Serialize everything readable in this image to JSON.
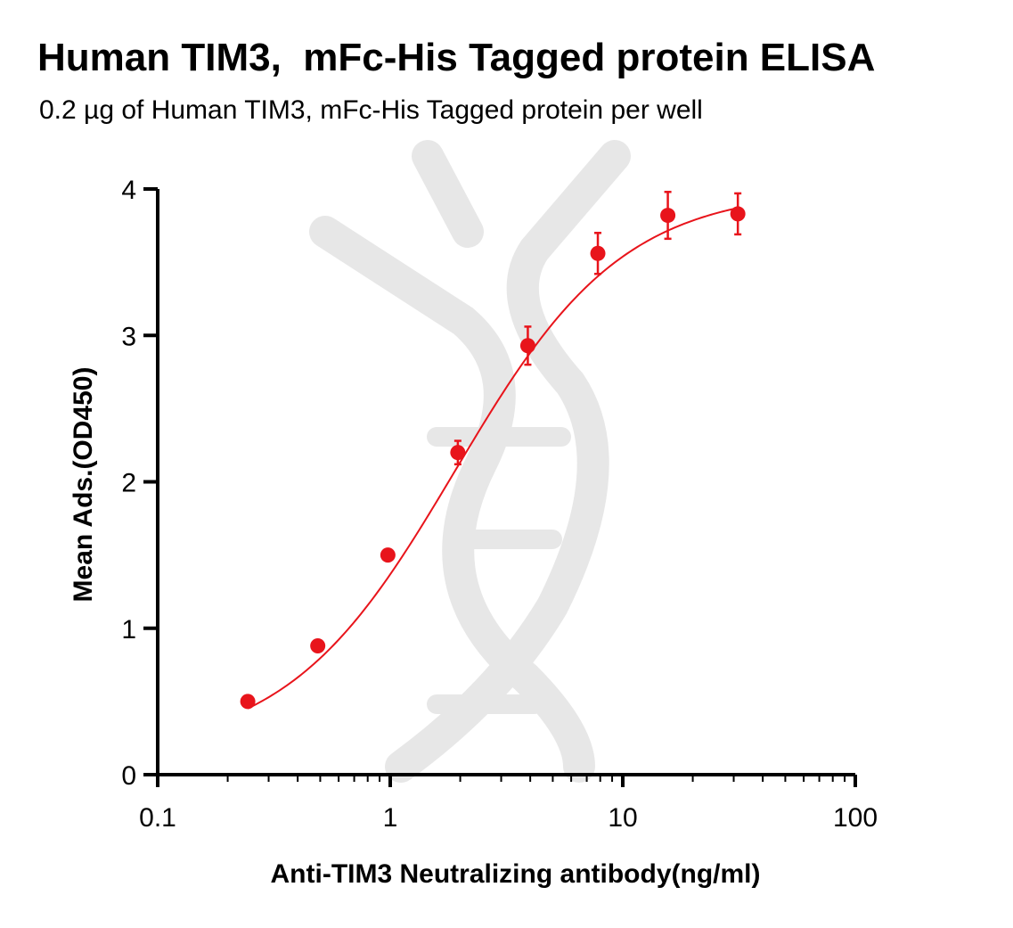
{
  "chart_data": {
    "type": "scatter",
    "title": "Human TIM3,  mFc-His Tagged protein ELISA",
    "subtitle": "0.2 µg of Human TIM3, mFc-His Tagged protein per well",
    "xlabel": "Anti-TIM3 Neutralizing antibody(ng/ml)",
    "ylabel": "Mean Ads.(OD450)",
    "x_scale": "log",
    "xlim": [
      0.1,
      100
    ],
    "ylim": [
      0,
      4
    ],
    "x_ticks": [
      0.1,
      1,
      10,
      100
    ],
    "x_tick_labels": [
      "0.1",
      "1",
      "10",
      "100"
    ],
    "y_ticks": [
      0,
      1,
      2,
      3,
      4
    ],
    "y_tick_labels": [
      "0",
      "1",
      "2",
      "3",
      "4"
    ],
    "grid": false,
    "color": "#e8141b",
    "series": [
      {
        "x": [
          0.244,
          0.488,
          0.977,
          1.953,
          3.906,
          7.813,
          15.625,
          31.25
        ],
        "y": [
          0.5,
          0.88,
          1.5,
          2.2,
          2.93,
          3.56,
          3.82,
          3.83
        ],
        "error": [
          0.02,
          0.02,
          0.03,
          0.08,
          0.13,
          0.14,
          0.16,
          0.14
        ]
      }
    ],
    "fit_curve": {
      "model": "4PL",
      "bottom": 0.15,
      "top": 4.0,
      "ec50": 1.9,
      "hill": 1.2
    }
  }
}
